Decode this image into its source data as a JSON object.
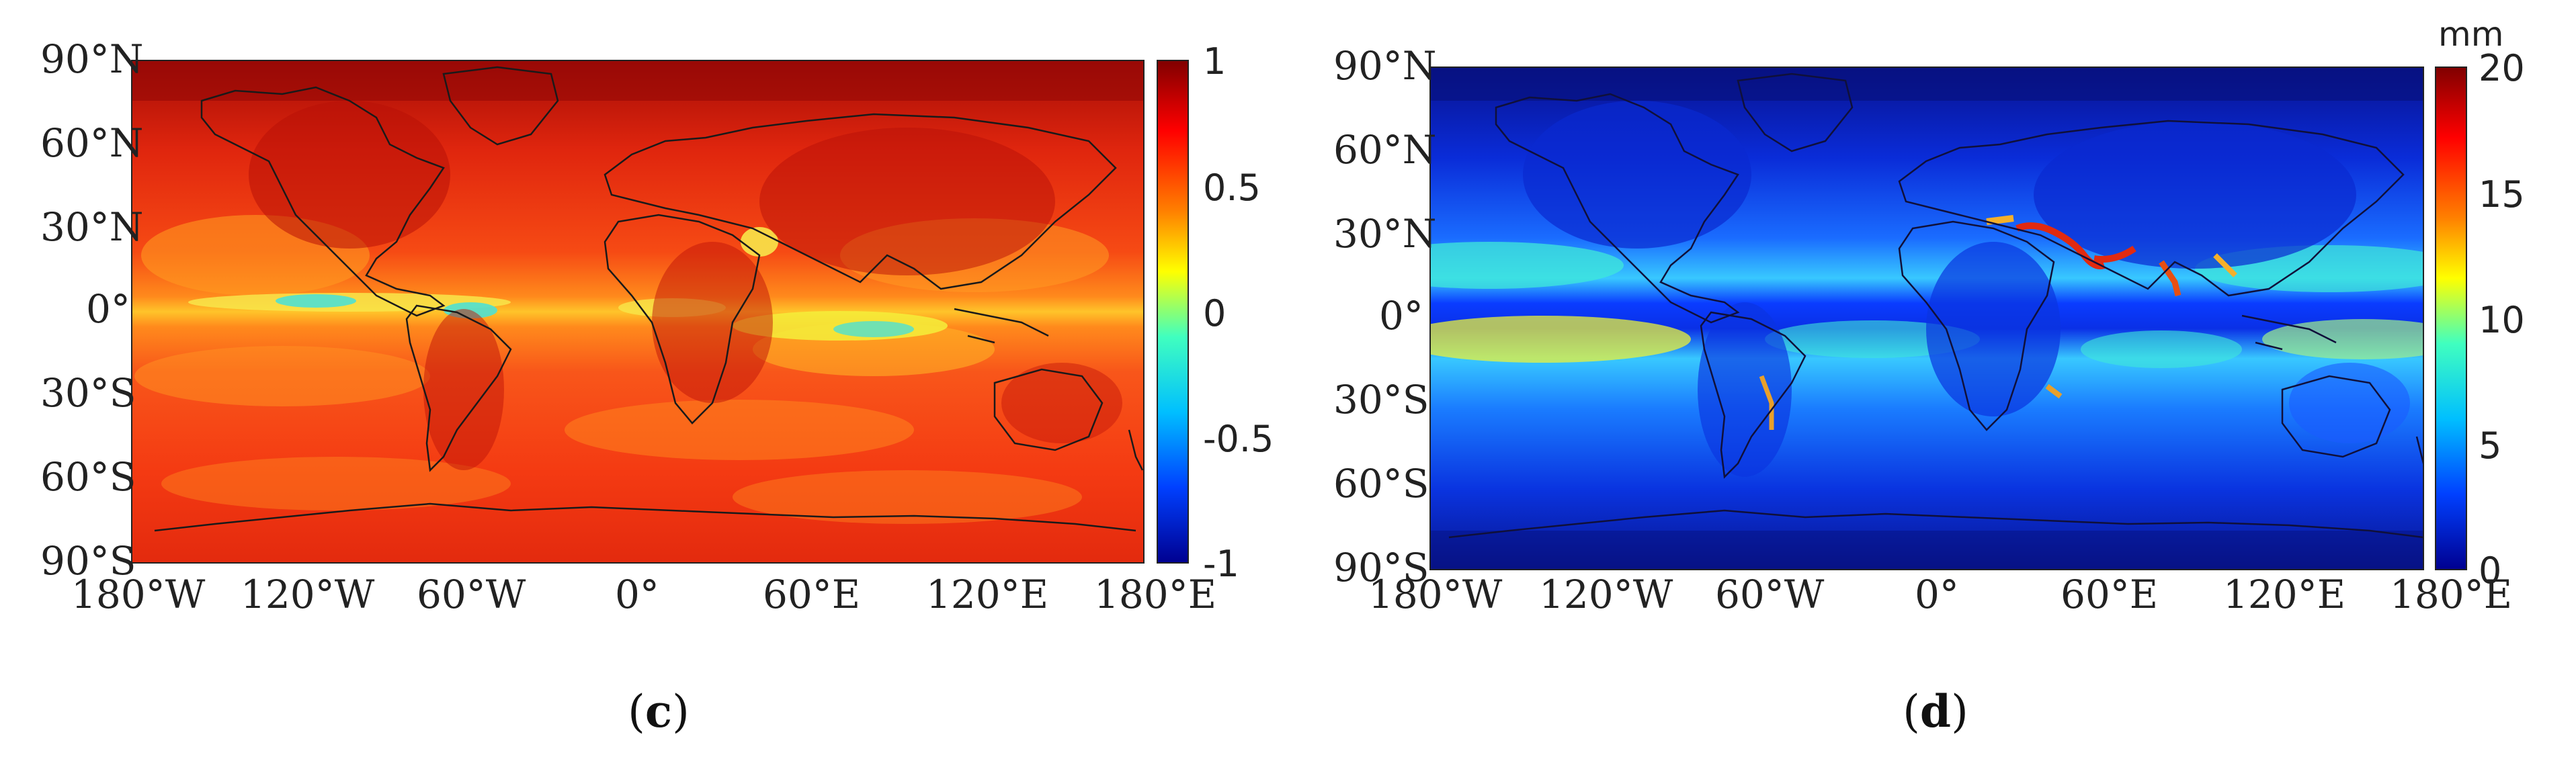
{
  "panels": [
    {
      "id": "c",
      "caption": "c",
      "lat_labels": [
        "90°N",
        "60°N",
        "30°N",
        "0°",
        "30°S",
        "60°S",
        "90°S"
      ],
      "lon_labels": [
        "180°W",
        "120°W",
        "60°W",
        "0°",
        "60°E",
        "120°E",
        "180°E"
      ],
      "colorbar": {
        "unit": "",
        "ticks": [
          "1",
          "0.5",
          "0",
          "-0.5",
          "-1"
        ],
        "colors": [
          "#800000",
          "#ff0000",
          "#ff8000",
          "#ffff00",
          "#40ffbf",
          "#00bfff",
          "#0040ff",
          "#000090"
        ]
      },
      "palette": {
        "base": "#f23a12",
        "dark": "#b80d08",
        "warm": "#ff6a1a",
        "light": "#ffae22",
        "yellow": "#f5ee3a",
        "cyan": "#4fe0d2"
      }
    },
    {
      "id": "d",
      "caption": "d",
      "lat_labels": [
        "90°N",
        "60°N",
        "30°N",
        "0°",
        "30°S",
        "60°S",
        "90°S"
      ],
      "lon_labels": [
        "180°W",
        "120°W",
        "60°W",
        "0°",
        "60°E",
        "120°E",
        "180°E"
      ],
      "colorbar": {
        "unit": "mm",
        "ticks": [
          "20",
          "15",
          "10",
          "5",
          "0"
        ],
        "colors": [
          "#800000",
          "#ff0000",
          "#ff8000",
          "#ffff00",
          "#40ffbf",
          "#00bfff",
          "#0040ff",
          "#000090"
        ]
      },
      "palette": {
        "base": "#0a3cff",
        "dark": "#08129a",
        "light": "#1a9cff",
        "cyan": "#3fe8d9",
        "yellow": "#e9f23a",
        "red": "#e12a10"
      }
    }
  ]
}
